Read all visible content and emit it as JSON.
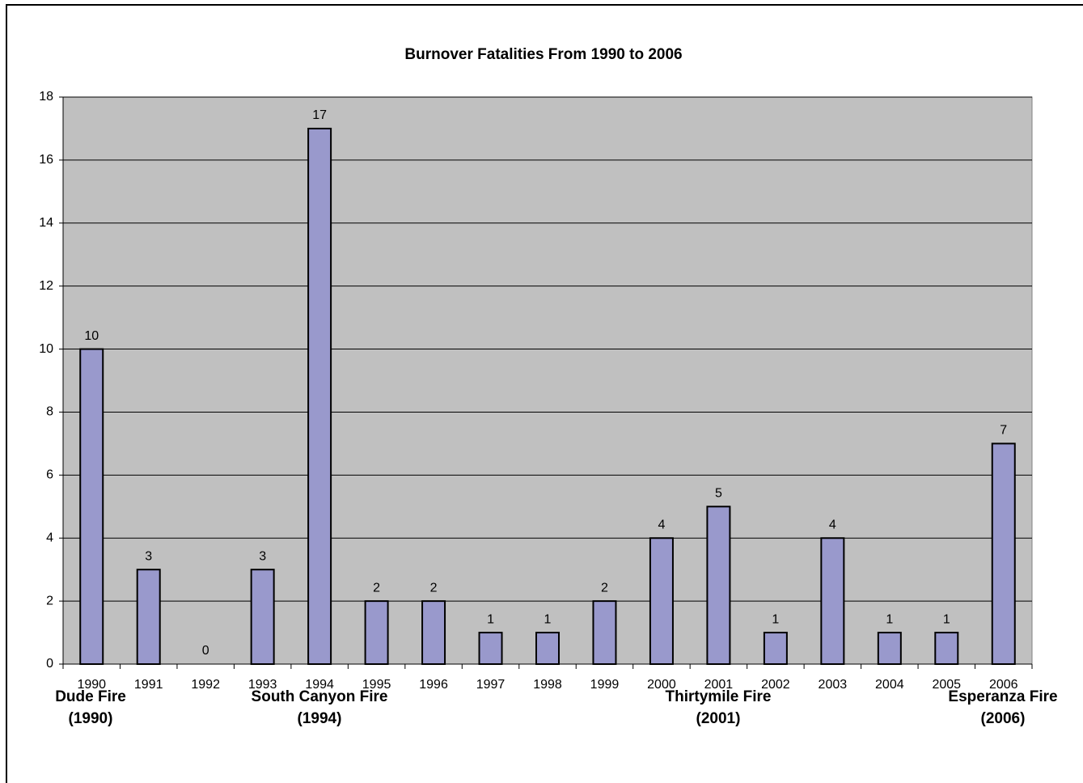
{
  "chart_data": {
    "type": "bar",
    "title": "Burnover Fatalities From 1990 to 2006",
    "categories": [
      "1990",
      "1991",
      "1992",
      "1993",
      "1994",
      "1995",
      "1996",
      "1997",
      "1998",
      "1999",
      "2000",
      "2001",
      "2002",
      "2003",
      "2004",
      "2005",
      "2006"
    ],
    "values": [
      10,
      3,
      0,
      3,
      17,
      2,
      2,
      1,
      1,
      2,
      4,
      5,
      1,
      4,
      1,
      1,
      7
    ],
    "color": "#9999cc",
    "plot_background": "#c0c0c0",
    "ylim": [
      0,
      18
    ],
    "yticks": [
      0,
      2,
      4,
      6,
      8,
      10,
      12,
      14,
      16,
      18
    ],
    "grid": true,
    "annotations": [
      {
        "lines": [
          "Dude Fire",
          "(1990)"
        ]
      },
      {
        "lines": [
          "South Canyon Fire",
          "(1994)"
        ]
      },
      {
        "lines": [
          "Thirtymile Fire",
          "(2001)"
        ]
      },
      {
        "lines": [
          "Esperanza Fire",
          "(2006)"
        ]
      }
    ]
  }
}
